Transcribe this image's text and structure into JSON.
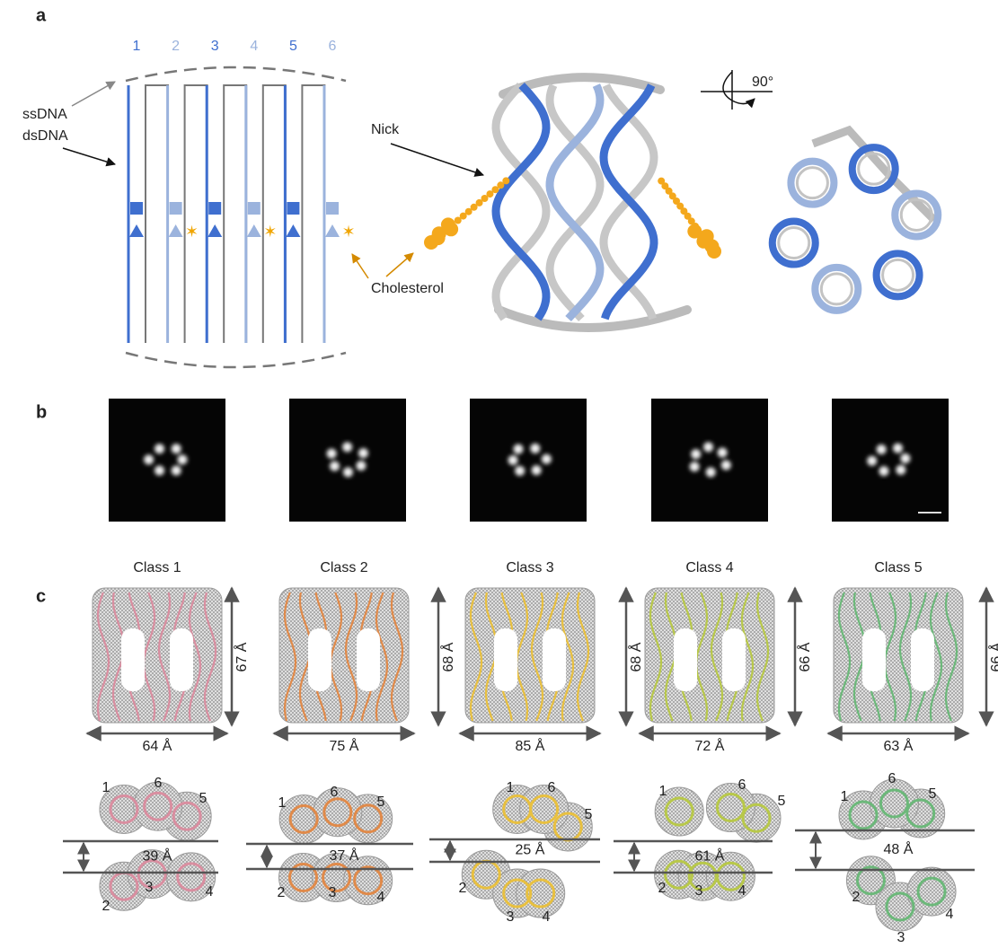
{
  "panel_a": {
    "label": "a",
    "helix_labels": [
      1,
      2,
      3,
      4,
      5,
      6
    ],
    "ssdna": "ssDNA",
    "dsdna": "dsDNA",
    "nick": "Nick",
    "cholesterol": "Cholesterol",
    "rotation": "90°"
  },
  "panel_b": {
    "label": "b"
  },
  "panel_c": {
    "label": "c",
    "helix_labels": [
      1,
      2,
      3,
      4,
      5,
      6
    ],
    "classes": [
      {
        "name": "Class 1",
        "height": "67 Å",
        "width": "64 Å",
        "gap": "39 Å"
      },
      {
        "name": "Class 2",
        "height": "68 Å",
        "width": "75 Å",
        "gap": "37 Å"
      },
      {
        "name": "Class 3",
        "height": "68 Å",
        "width": "85 Å",
        "gap": "25 Å"
      },
      {
        "name": "Class 4",
        "height": "66 Å",
        "width": "72 Å",
        "gap": "61 Å"
      },
      {
        "name": "Class 5",
        "height": "66 Å",
        "width": "63 Å",
        "gap": "48 Å"
      }
    ]
  }
}
